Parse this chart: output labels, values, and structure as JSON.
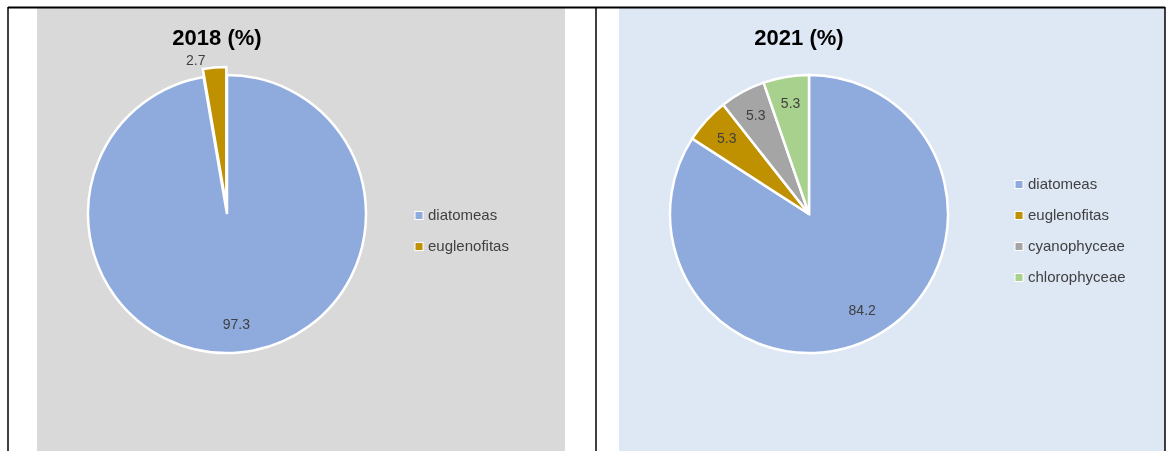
{
  "chart_data": [
    {
      "type": "pie",
      "title": "2018 (%)",
      "categories": [
        "diatomeas",
        "euglenofitas"
      ],
      "values": [
        97.3,
        2.7
      ],
      "colors": [
        "#8faadc",
        "#bf9000"
      ],
      "data_labels": true,
      "legend": "right"
    },
    {
      "type": "pie",
      "title": "2021 (%)",
      "categories": [
        "diatomeas",
        "euglenofitas",
        "cyanophyceae",
        "chlorophyceae"
      ],
      "values": [
        84.2,
        5.3,
        5.3,
        5.3
      ],
      "colors": [
        "#8faadc",
        "#bf9000",
        "#a5a5a5",
        "#a9d18e"
      ],
      "data_labels": true,
      "legend": "right"
    }
  ]
}
